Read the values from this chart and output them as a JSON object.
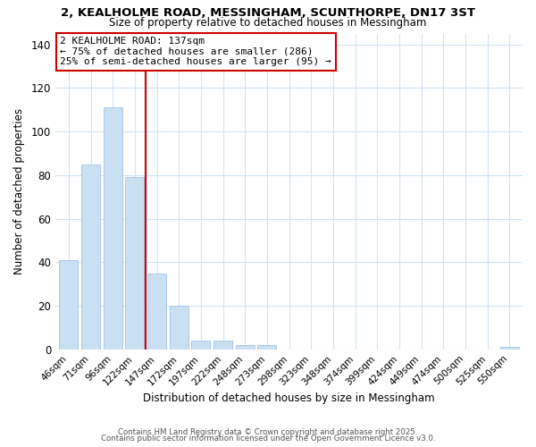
{
  "title": "2, KEALHOLME ROAD, MESSINGHAM, SCUNTHORPE, DN17 3ST",
  "subtitle": "Size of property relative to detached houses in Messingham",
  "xlabel": "Distribution of detached houses by size in Messingham",
  "ylabel": "Number of detached properties",
  "bar_labels": [
    "46sqm",
    "71sqm",
    "96sqm",
    "122sqm",
    "147sqm",
    "172sqm",
    "197sqm",
    "222sqm",
    "248sqm",
    "273sqm",
    "298sqm",
    "323sqm",
    "348sqm",
    "374sqm",
    "399sqm",
    "424sqm",
    "449sqm",
    "474sqm",
    "500sqm",
    "525sqm",
    "550sqm"
  ],
  "bar_values": [
    41,
    85,
    111,
    79,
    35,
    20,
    4,
    4,
    2,
    2,
    0,
    0,
    0,
    0,
    0,
    0,
    0,
    0,
    0,
    0,
    1
  ],
  "bar_color": "#c9dff2",
  "bar_edge_color": "#a0c4e8",
  "vline_index": 4,
  "vline_color": "#cc0000",
  "annotation_title": "2 KEALHOLME ROAD: 137sqm",
  "annotation_line1": "← 75% of detached houses are smaller (286)",
  "annotation_line2": "25% of semi-detached houses are larger (95) →",
  "annotation_box_color": "#ffffff",
  "annotation_box_edge_color": "#cc0000",
  "ylim": [
    0,
    145
  ],
  "yticks": [
    0,
    20,
    40,
    60,
    80,
    100,
    120,
    140
  ],
  "footer1": "Contains HM Land Registry data © Crown copyright and database right 2025.",
  "footer2": "Contains public sector information licensed under the Open Government Licence v3.0.",
  "background_color": "#ffffff",
  "grid_color": "#d0e4f4"
}
